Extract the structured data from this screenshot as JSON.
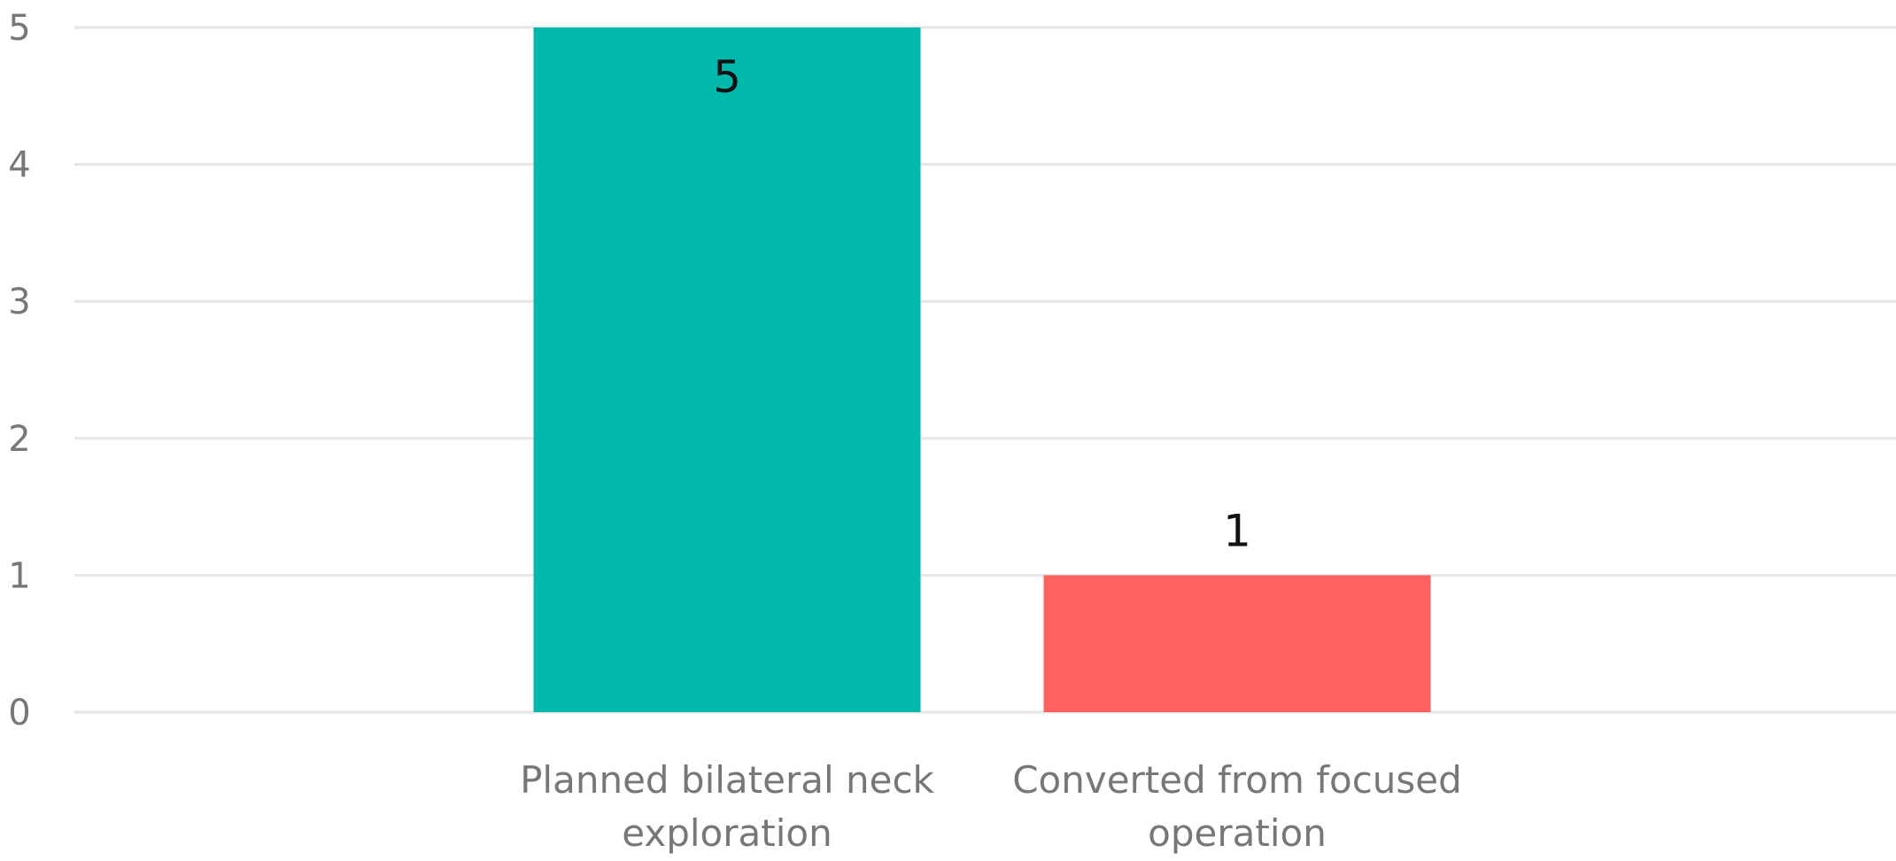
{
  "chart_data": {
    "type": "bar",
    "title": "",
    "xlabel": "",
    "ylabel": "",
    "categories": [
      "Planned bilateral neck exploration",
      "Converted from focused operation"
    ],
    "values": [
      5,
      1
    ],
    "colors": [
      "#02b8aa",
      "#fd625e"
    ],
    "ylim": [
      0,
      5
    ],
    "yticks": [
      0,
      1,
      2,
      3,
      4,
      5
    ],
    "grid": true,
    "legend": "none",
    "data_labels": [
      "5",
      "1"
    ]
  }
}
